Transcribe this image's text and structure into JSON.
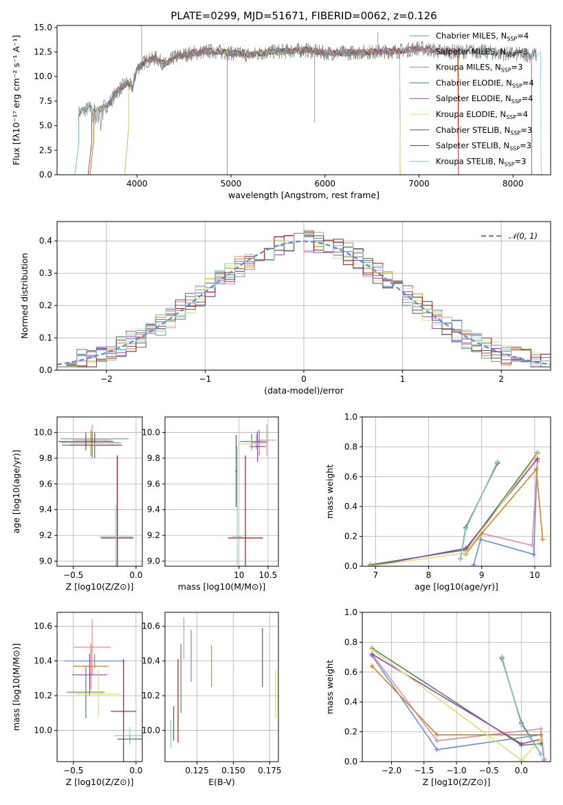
{
  "title": "PLATE=0299, MJD=51671, FIBERID=0062, z=0.126",
  "colors": {
    "Chabrier MILES": "#6a8fd8",
    "Salpeter MILES": "#e48ab3",
    "Kroupa MILES": "#c98c1a",
    "Chabrier ELODIE": "#4e8a57",
    "Salpeter ELODIE": "#9d3bb5",
    "Kroupa ELODIE": "#d9e36a",
    "Chabrier STELIB": "#555555",
    "Salpeter STELIB": "#b01515",
    "Kroupa STELIB": "#7fd0d6",
    "orange": "#e37a23",
    "data": "#808080",
    "normal": "#5b8ad6"
  },
  "chart_data": [
    {
      "type": "line",
      "id": "spectrum",
      "xlabel": "wavelength [Angstrom, rest frame]",
      "ylabel": "Flux [fλ10⁻¹⁷ erg cm⁻² s⁻¹ A⁻¹]",
      "xlim": [
        3150,
        8400
      ],
      "ylim": [
        0,
        15.2
      ],
      "xticks": [
        "4000",
        "5000",
        "6000",
        "7000",
        "8000"
      ],
      "yticks": [
        "0.0",
        "2.5",
        "5.0",
        "7.5",
        "10.0",
        "12.5",
        "15.0"
      ],
      "grid": false,
      "legend_position": "top-right",
      "legend": [
        {
          "name": "Chabrier MILES",
          "nssp": "4"
        },
        {
          "name": "Salpeter MILES",
          "nssp": "3"
        },
        {
          "name": "Kroupa MILES",
          "nssp": "3"
        },
        {
          "name": "Chabrier ELODIE",
          "nssp": "4"
        },
        {
          "name": "Salpeter ELODIE",
          "nssp": "4"
        },
        {
          "name": "Kroupa ELODIE",
          "nssp": "4"
        },
        {
          "name": "Chabrier STELIB",
          "nssp": "3"
        },
        {
          "name": "Salpeter STELIB",
          "nssp": "3"
        },
        {
          "name": "Kroupa STELIB",
          "nssp": "3"
        }
      ],
      "continuum": [
        [
          3380,
          6.3
        ],
        [
          3500,
          6.8
        ],
        [
          3600,
          6.6
        ],
        [
          3700,
          7.2
        ],
        [
          3800,
          8.6
        ],
        [
          3900,
          9.4
        ],
        [
          3950,
          8.8
        ],
        [
          4000,
          10.8
        ],
        [
          4100,
          11.6
        ],
        [
          4200,
          11.9
        ],
        [
          4300,
          11.2
        ],
        [
          4400,
          12.0
        ],
        [
          4600,
          12.4
        ],
        [
          4800,
          12.6
        ],
        [
          5000,
          12.4
        ],
        [
          5200,
          12.2
        ],
        [
          5400,
          12.5
        ],
        [
          5600,
          12.6
        ],
        [
          5800,
          12.7
        ],
        [
          6000,
          12.4
        ],
        [
          6200,
          12.4
        ],
        [
          6500,
          12.5
        ],
        [
          6800,
          12.6
        ],
        [
          7000,
          12.9
        ],
        [
          7200,
          12.6
        ],
        [
          7400,
          12.5
        ],
        [
          7600,
          12.6
        ],
        [
          7800,
          12.4
        ],
        [
          8000,
          12.3
        ],
        [
          8200,
          12.2
        ]
      ]
    },
    {
      "type": "line",
      "id": "residuals",
      "xlabel": "(data-model)/error",
      "ylabel": "Normed distribution",
      "xlim": [
        -2.5,
        2.5
      ],
      "ylim": [
        0,
        0.46
      ],
      "xticks": [
        "−2",
        "−1",
        "0",
        "1",
        "2"
      ],
      "yticks": [
        "0.0",
        "0.1",
        "0.2",
        "0.3",
        "0.4"
      ],
      "grid": true,
      "legend_position": "top-right",
      "legend": [
        "𝒩(0, 1)"
      ],
      "bin_width": 0.1,
      "bin_start": -2.5
    },
    {
      "type": "scatter",
      "id": "z-age",
      "xlabel": "Z [log10(Z/Z⊙)]",
      "ylabel": "age  [log10(age/yr)]",
      "xlim": [
        -0.63,
        0.05
      ],
      "ylim": [
        8.96,
        10.12
      ],
      "xticks": [
        "−0.5",
        "0.0"
      ],
      "yticks": [
        "9.0",
        "9.2",
        "9.4",
        "9.6",
        "9.8",
        "10.0"
      ],
      "grid": true,
      "points": [
        {
          "series": "Chabrier MILES",
          "x": -0.33,
          "xerr": 0.27,
          "y": 9.95,
          "yerr": 0.04
        },
        {
          "series": "Salpeter MILES",
          "x": -0.35,
          "xerr": 0.15,
          "y": 9.94,
          "yerr": 0.12
        },
        {
          "series": "Kroupa MILES",
          "x": -0.36,
          "xerr": 0.24,
          "y": 9.92,
          "yerr": 0.1
        },
        {
          "series": "Chabrier ELODIE",
          "x": -0.35,
          "xerr": 0.24,
          "y": 9.9,
          "yerr": 0.1
        },
        {
          "series": "Salpeter ELODIE",
          "x": -0.33,
          "xerr": 0.2,
          "y": 9.9,
          "yerr": 0.1
        },
        {
          "series": "Kroupa ELODIE",
          "x": -0.32,
          "xerr": 0.2,
          "y": 9.91,
          "yerr": 0.02
        },
        {
          "series": "Chabrier STELIB",
          "x": -0.4,
          "xerr": 0.22,
          "y": 9.93,
          "yerr": 0.07
        },
        {
          "series": "Salpeter STELIB",
          "x": -0.15,
          "xerr": 0.13,
          "y": 9.18,
          "yerr": 0.64
        },
        {
          "series": "Kroupa STELIB",
          "x": -0.16,
          "xerr": 0.13,
          "y": 9.19,
          "yerr": 0.25
        }
      ]
    },
    {
      "type": "scatter",
      "id": "mass-age",
      "xlabel": "mass [log10(M/M⊙)]",
      "ylabel": "",
      "xlim": [
        8.72,
        10.68
      ],
      "ylim": [
        8.96,
        10.12
      ],
      "xticks": [
        "10",
        "10.5"
      ],
      "yticks": [
        "9.0",
        "9.2",
        "9.4",
        "9.6",
        "9.8",
        "10.0"
      ],
      "grid": true,
      "points": [
        {
          "series": "Chabrier MILES",
          "x": 10.3,
          "xerr": 0.2,
          "y": 9.93,
          "yerr": 0.06
        },
        {
          "series": "Salpeter MILES",
          "x": 10.48,
          "xerr": 0.16,
          "y": 9.94,
          "yerr": 0.12
        },
        {
          "series": "Kroupa MILES",
          "x": 10.35,
          "xerr": 0.12,
          "y": 9.92,
          "yerr": 0.1
        },
        {
          "series": "Chabrier ELODIE",
          "x": 10.22,
          "xerr": 0.2,
          "y": 9.93,
          "yerr": 0.06
        },
        {
          "series": "Salpeter ELODIE",
          "x": 10.32,
          "xerr": 0.14,
          "y": 9.89,
          "yerr": 0.12
        },
        {
          "series": "Kroupa ELODIE",
          "x": 10.21,
          "xerr": 0.2,
          "y": 9.91,
          "yerr": 0.06
        },
        {
          "series": "Chabrier STELIB",
          "x": 9.95,
          "xerr": 0.02,
          "y": 9.7,
          "yerr": 0.28
        },
        {
          "series": "Salpeter STELIB",
          "x": 10.11,
          "xerr": 0.3,
          "y": 9.18,
          "yerr": 0.64
        },
        {
          "series": "Kroupa STELIB",
          "x": 9.97,
          "xerr": 0.09,
          "y": 9.19,
          "yerr": 0.7
        }
      ]
    },
    {
      "type": "line",
      "id": "age-weight",
      "xlabel": "age  [log10(age/yr)]",
      "ylabel": "mass weight",
      "xlim": [
        6.75,
        10.3
      ],
      "ylim": [
        0,
        1.0
      ],
      "xticks": [
        "7",
        "8",
        "9",
        "10"
      ],
      "yticks": [
        "0.0",
        "0.2",
        "0.4",
        "0.6",
        "0.8",
        "1.0"
      ],
      "grid": true,
      "series": [
        {
          "name": "Chabrier MILES",
          "x": [
            8.85,
            8.98,
            9.98
          ],
          "y": [
            0.01,
            0.18,
            0.08
          ]
        },
        {
          "name": "Chabrier MILES b",
          "color": "Chabrier MILES",
          "x": [
            9.98,
            10.05
          ],
          "y": [
            0.08,
            0.7
          ]
        },
        {
          "name": "Salpeter MILES",
          "x": [
            8.7,
            9.0,
            9.95,
            10.05
          ],
          "y": [
            0.1,
            0.22,
            0.14,
            0.71
          ]
        },
        {
          "name": "Kroupa MILES",
          "x": [
            8.7,
            9.0,
            10.03,
            10.15
          ],
          "y": [
            0.08,
            0.22,
            0.65,
            0.18
          ]
        },
        {
          "name": "Chabrier ELODIE",
          "x": [
            6.9,
            8.7,
            10.05
          ],
          "y": [
            0.01,
            0.11,
            0.76
          ]
        },
        {
          "name": "Salpeter ELODIE",
          "x": [
            6.9,
            8.7,
            10.05
          ],
          "y": [
            0.0,
            0.12,
            0.72
          ]
        },
        {
          "name": "Kroupa ELODIE",
          "x": [
            6.9,
            8.7,
            10.05
          ],
          "y": [
            0.0,
            0.09,
            0.75
          ]
        },
        {
          "name": "Chabrier STELIB",
          "x": [
            8.6,
            8.7,
            9.3
          ],
          "y": [
            0.05,
            0.26,
            0.69
          ]
        },
        {
          "name": "Salpeter STELIB",
          "x": [
            8.6,
            8.7,
            9.3
          ],
          "y": [
            0.05,
            0.25,
            0.7
          ]
        },
        {
          "name": "Kroupa STELIB",
          "x": [
            8.6,
            8.7,
            9.3
          ],
          "y": [
            0.05,
            0.25,
            0.7
          ]
        }
      ]
    },
    {
      "type": "scatter",
      "id": "z-mass",
      "xlabel": "Z [log10(Z/Z⊙)]",
      "ylabel": "mass [log10(M/M⊙)]",
      "xlim": [
        -0.63,
        0.05
      ],
      "ylim": [
        9.82,
        10.68
      ],
      "xticks": [
        "−0.5",
        "0.0"
      ],
      "yticks": [
        "10.0",
        "10.2",
        "10.4",
        "10.6"
      ],
      "grid": true,
      "points": [
        {
          "series": "Chabrier MILES",
          "x": -0.33,
          "xerr": 0.24,
          "y": 10.4,
          "yerr": 0.04
        },
        {
          "series": "Salpeter MILES",
          "x": -0.35,
          "xerr": 0.15,
          "y": 10.48,
          "yerr": 0.16
        },
        {
          "series": "Kroupa MILES",
          "x": -0.36,
          "xerr": 0.14,
          "y": 10.37,
          "yerr": 0.13
        },
        {
          "series": "Chabrier ELODIE",
          "x": -0.4,
          "xerr": 0.15,
          "y": 10.22,
          "yerr": 0.15
        },
        {
          "series": "Salpeter ELODIE",
          "x": -0.37,
          "xerr": 0.14,
          "y": 10.32,
          "yerr": 0.12
        },
        {
          "series": "Kroupa ELODIE",
          "x": -0.3,
          "xerr": 0.18,
          "y": 10.21,
          "yerr": 0.14
        },
        {
          "series": "Chabrier STELIB",
          "x": -0.05,
          "xerr": 0.1,
          "y": 9.95,
          "yerr": 0.02
        },
        {
          "series": "Salpeter STELIB",
          "x": -0.1,
          "xerr": 0.1,
          "y": 10.11,
          "yerr": 0.3
        },
        {
          "series": "Kroupa STELIB",
          "x": -0.05,
          "xerr": 0.12,
          "y": 9.97,
          "yerr": 0.05
        }
      ]
    },
    {
      "type": "scatter",
      "id": "ebv-mass",
      "xlabel": "E(B-V)",
      "ylabel": "",
      "xlim": [
        0.103,
        0.181
      ],
      "ylim": [
        9.82,
        10.68
      ],
      "xticks": [
        "0.125",
        "0.150",
        "0.175"
      ],
      "yticks": [
        "10.0",
        "10.2",
        "10.4",
        "10.6"
      ],
      "grid": true,
      "points": [
        {
          "series": "Chabrier MILES",
          "x": 0.121,
          "y": 10.43,
          "yerr": 0.15
        },
        {
          "series": "Salpeter MILES",
          "x": 0.116,
          "y": 10.53,
          "yerr": 0.12
        },
        {
          "series": "Kroupa MILES",
          "x": 0.135,
          "y": 10.37,
          "yerr": 0.12
        },
        {
          "series": "Chabrier ELODIE",
          "x": 0.114,
          "y": 10.3,
          "yerr": 0.2
        },
        {
          "series": "Salpeter ELODIE",
          "x": 0.17,
          "y": 10.42,
          "yerr": 0.17
        },
        {
          "series": "Kroupa ELODIE",
          "x": 0.179,
          "y": 10.21,
          "yerr": 0.14
        },
        {
          "series": "Chabrier STELIB",
          "x": 0.109,
          "y": 10.04,
          "yerr": 0.1
        },
        {
          "series": "Salpeter STELIB",
          "x": 0.112,
          "y": 10.17,
          "yerr": 0.24
        },
        {
          "series": "Kroupa STELIB",
          "x": 0.107,
          "y": 9.98,
          "yerr": 0.08
        }
      ]
    },
    {
      "type": "line",
      "id": "z-weight",
      "xlabel": "Z [log10(Z/Z⊙)]",
      "ylabel": "mass weight",
      "xlim": [
        -2.45,
        0.45
      ],
      "ylim": [
        0,
        1.0
      ],
      "xticks": [
        "−2.0",
        "−1.5",
        "−1.0",
        "−0.5",
        "0.0"
      ],
      "yticks": [
        "0.0",
        "0.2",
        "0.4",
        "0.6",
        "0.8",
        "1.0"
      ],
      "grid": true,
      "series": [
        {
          "name": "Chabrier MILES",
          "x": [
            -2.3,
            -1.3,
            0.3,
            0.35
          ],
          "y": [
            0.71,
            0.08,
            0.18,
            0.01
          ]
        },
        {
          "name": "Salpeter MILES",
          "x": [
            -2.3,
            -1.3,
            0.3,
            0.35
          ],
          "y": [
            0.72,
            0.14,
            0.22,
            0.02
          ]
        },
        {
          "name": "Kroupa MILES",
          "x": [
            -2.3,
            -1.3,
            0.3
          ],
          "y": [
            0.64,
            0.18,
            0.18
          ]
        },
        {
          "name": "Chabrier ELODIE",
          "x": [
            -2.3,
            0.0,
            0.3
          ],
          "y": [
            0.76,
            0.11,
            0.12
          ]
        },
        {
          "name": "Salpeter ELODIE",
          "x": [
            -2.3,
            0.0,
            0.3
          ],
          "y": [
            0.72,
            0.12,
            0.15
          ]
        },
        {
          "name": "Kroupa ELODIE",
          "x": [
            -2.3,
            0.0,
            0.3
          ],
          "y": [
            0.75,
            0.01,
            0.15
          ]
        },
        {
          "name": "Chabrier STELIB",
          "x": [
            -0.3,
            0.0,
            0.3
          ],
          "y": [
            0.69,
            0.26,
            0.05
          ]
        },
        {
          "name": "Salpeter STELIB",
          "x": [
            -0.3,
            0.0,
            0.3
          ],
          "y": [
            0.7,
            0.25,
            0.05
          ]
        },
        {
          "name": "Kroupa STELIB",
          "x": [
            -0.3,
            0.0,
            0.3
          ],
          "y": [
            0.7,
            0.25,
            0.05
          ]
        }
      ]
    }
  ]
}
